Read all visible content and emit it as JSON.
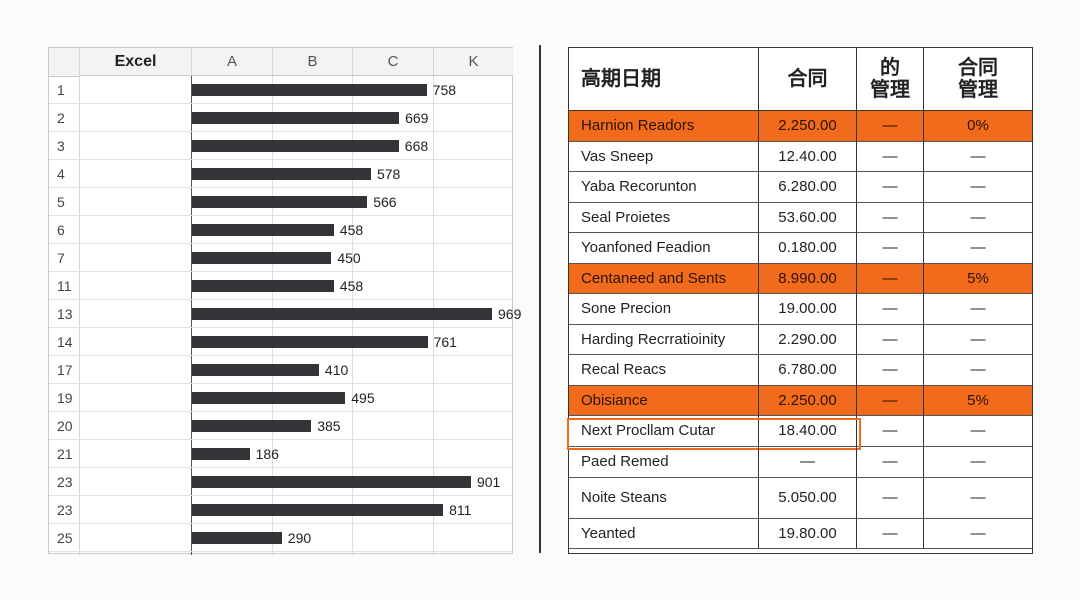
{
  "sheet": {
    "columns": [
      "Excel",
      "A",
      "B",
      "C",
      "K"
    ],
    "rows": [
      {
        "row": 1,
        "value": 758
      },
      {
        "row": 2,
        "value": 669
      },
      {
        "row": 3,
        "value": 668
      },
      {
        "row": 4,
        "value": 578
      },
      {
        "row": 5,
        "value": 566
      },
      {
        "row": 6,
        "value": 458
      },
      {
        "row": 7,
        "value": 450
      },
      {
        "row": 11,
        "value": 458
      },
      {
        "row": 13,
        "value": 969
      },
      {
        "row": 14,
        "value": 761
      },
      {
        "row": 17,
        "value": 410
      },
      {
        "row": 19,
        "value": 495
      },
      {
        "row": 20,
        "value": 385
      },
      {
        "row": 21,
        "value": 186
      },
      {
        "row": 23,
        "value": 901
      },
      {
        "row": 23,
        "value": 811
      },
      {
        "row": 25,
        "value": 290
      }
    ],
    "bar_color": "#333338"
  },
  "table": {
    "header": [
      "高期日期",
      "合同",
      "的\n管理",
      "合同\n管理"
    ],
    "highlight_color": "#f26b1d",
    "rows": [
      {
        "cells": [
          "Harnion Readors",
          "2.250.00",
          "—",
          "0%"
        ],
        "style": "highlight"
      },
      {
        "cells": [
          "Vas Sneep",
          "12.40.00",
          "—",
          "—"
        ]
      },
      {
        "cells": [
          "Yaba Recorunton",
          "6.280.00",
          "—",
          "—"
        ]
      },
      {
        "cells": [
          "Seal Proietes",
          "53.60.00",
          "—",
          "—"
        ]
      },
      {
        "cells": [
          "Yoanfoned Feadion",
          "0.180.00",
          "—",
          "—"
        ]
      },
      {
        "cells": [
          "Centaneed and Sents",
          "8.990.00",
          "—",
          "5%"
        ],
        "style": "highlight"
      },
      {
        "cells": [
          "Sone Precion",
          "19.00.00",
          "—",
          "—"
        ]
      },
      {
        "cells": [
          "Harding Recrratioinity",
          "2.290.00",
          "—",
          "—"
        ]
      },
      {
        "cells": [
          "Recal Reacs",
          "6.780.00",
          "—",
          "—"
        ]
      },
      {
        "cells": [
          "Obisiance",
          "2.250.00",
          "—",
          "5%"
        ],
        "style": "highlight"
      },
      {
        "cells": [
          "Next Procllam Cutar",
          "18.40.00",
          "—",
          "—"
        ],
        "style": "outlined"
      },
      {
        "cells": [
          "Paed Remed",
          "—",
          "—",
          "—"
        ]
      },
      {
        "cells": [
          "Noite Steans",
          "5.050.00",
          "—",
          "—"
        ]
      },
      {
        "cells": [
          "Yeanted",
          "19.80.00",
          "—",
          "—"
        ]
      }
    ]
  }
}
